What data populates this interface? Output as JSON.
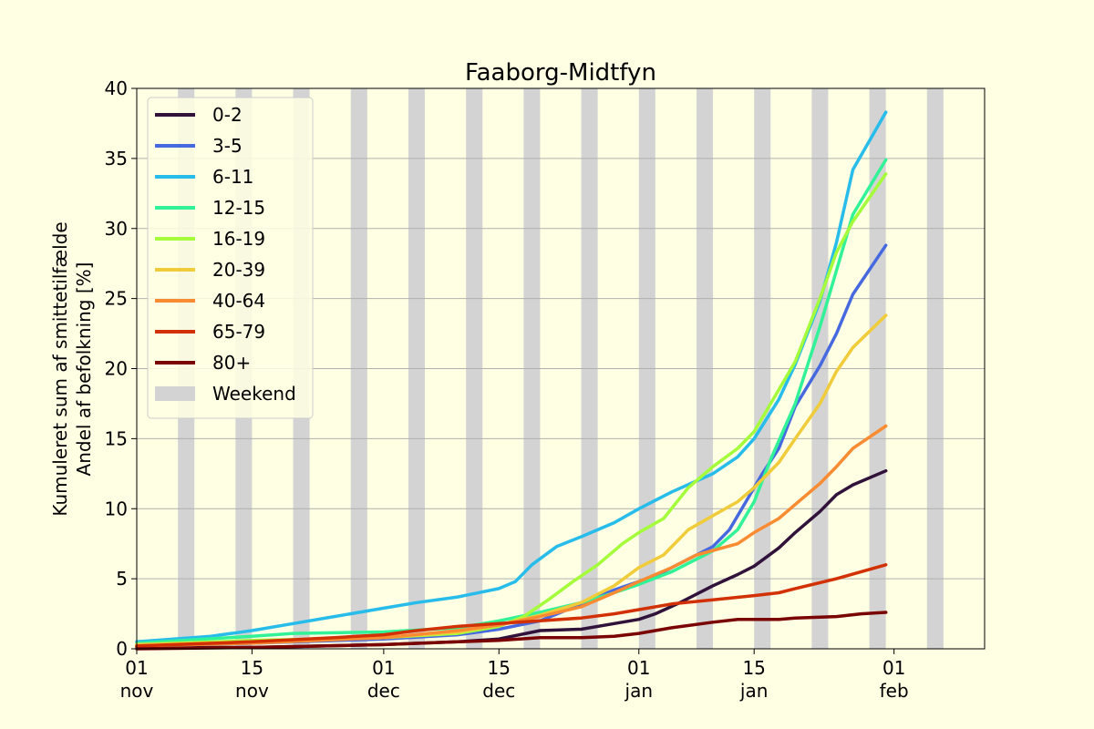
{
  "chart_data": {
    "type": "line",
    "title": "Faaborg-Midtfyn",
    "ylabel_line1": "Kumuleret sum af smittetilfælde",
    "ylabel_line2": "Andel af befolkning [%]",
    "xlabel": "",
    "ylim": [
      0,
      40
    ],
    "yticks": [
      0,
      5,
      10,
      15,
      20,
      25,
      30,
      35,
      40
    ],
    "x_start": "2021-11-01",
    "x_end": "2022-02-12",
    "xticks": [
      {
        "date": "2021-11-01",
        "day": "01",
        "month": "nov"
      },
      {
        "date": "2021-11-15",
        "day": "15",
        "month": "nov"
      },
      {
        "date": "2021-12-01",
        "day": "01",
        "month": "dec"
      },
      {
        "date": "2021-12-15",
        "day": "15",
        "month": "dec"
      },
      {
        "date": "2022-01-01",
        "day": "01",
        "month": "jan"
      },
      {
        "date": "2022-01-15",
        "day": "15",
        "month": "jan"
      },
      {
        "date": "2022-02-01",
        "day": "01",
        "month": "feb"
      }
    ],
    "grid": "horizontal",
    "legend_position": "top-left",
    "weekend_label": "Weekend",
    "weekend_color": "#d3d3d3",
    "weekends": [
      "2021-11-06",
      "2021-11-13",
      "2021-11-20",
      "2021-11-27",
      "2021-12-04",
      "2021-12-11",
      "2021-12-18",
      "2021-12-25",
      "2022-01-01",
      "2022-01-08",
      "2022-01-15",
      "2022-01-22",
      "2022-01-29",
      "2022-02-05"
    ],
    "series": [
      {
        "name": "0-2",
        "color": "#30123b",
        "points": [
          [
            "2021-11-01",
            0.1
          ],
          [
            "2021-11-15",
            0.1
          ],
          [
            "2021-12-01",
            0.3
          ],
          [
            "2021-12-10",
            0.5
          ],
          [
            "2021-12-15",
            0.7
          ],
          [
            "2021-12-20",
            1.3
          ],
          [
            "2021-12-25",
            1.4
          ],
          [
            "2021-12-29",
            1.8
          ],
          [
            "2022-01-01",
            2.1
          ],
          [
            "2022-01-03",
            2.5
          ],
          [
            "2022-01-06",
            3.3
          ],
          [
            "2022-01-10",
            4.5
          ],
          [
            "2022-01-13",
            5.3
          ],
          [
            "2022-01-15",
            5.9
          ],
          [
            "2022-01-18",
            7.2
          ],
          [
            "2022-01-20",
            8.3
          ],
          [
            "2022-01-23",
            9.8
          ],
          [
            "2022-01-25",
            11.0
          ],
          [
            "2022-01-27",
            11.7
          ],
          [
            "2022-01-31",
            12.7
          ]
        ]
      },
      {
        "name": "3-5",
        "color": "#4669e0",
        "points": [
          [
            "2021-11-01",
            0.2
          ],
          [
            "2021-11-15",
            0.4
          ],
          [
            "2021-12-01",
            0.7
          ],
          [
            "2021-12-10",
            1.0
          ],
          [
            "2021-12-15",
            1.4
          ],
          [
            "2021-12-20",
            2.0
          ],
          [
            "2021-12-25",
            3.2
          ],
          [
            "2021-12-29",
            4.2
          ],
          [
            "2022-01-01",
            4.8
          ],
          [
            "2022-01-04",
            5.5
          ],
          [
            "2022-01-08",
            6.7
          ],
          [
            "2022-01-10",
            7.3
          ],
          [
            "2022-01-12",
            8.5
          ],
          [
            "2022-01-14",
            10.5
          ],
          [
            "2022-01-16",
            12.5
          ],
          [
            "2022-01-18",
            14.3
          ],
          [
            "2022-01-20",
            17.3
          ],
          [
            "2022-01-23",
            20.2
          ],
          [
            "2022-01-25",
            22.5
          ],
          [
            "2022-01-27",
            25.3
          ],
          [
            "2022-01-31",
            28.8
          ]
        ]
      },
      {
        "name": "6-11",
        "color": "#28bceb",
        "points": [
          [
            "2021-11-01",
            0.5
          ],
          [
            "2021-11-10",
            0.9
          ],
          [
            "2021-11-15",
            1.3
          ],
          [
            "2021-11-20",
            1.8
          ],
          [
            "2021-11-25",
            2.3
          ],
          [
            "2021-12-01",
            2.9
          ],
          [
            "2021-12-05",
            3.3
          ],
          [
            "2021-12-10",
            3.7
          ],
          [
            "2021-12-15",
            4.3
          ],
          [
            "2021-12-17",
            4.8
          ],
          [
            "2021-12-19",
            6.0
          ],
          [
            "2021-12-22",
            7.3
          ],
          [
            "2021-12-25",
            8.0
          ],
          [
            "2021-12-29",
            9.0
          ],
          [
            "2022-01-01",
            10.0
          ],
          [
            "2022-01-05",
            11.2
          ],
          [
            "2022-01-10",
            12.5
          ],
          [
            "2022-01-13",
            13.7
          ],
          [
            "2022-01-15",
            15.0
          ],
          [
            "2022-01-18",
            17.8
          ],
          [
            "2022-01-20",
            20.3
          ],
          [
            "2022-01-23",
            24.8
          ],
          [
            "2022-01-25",
            29.0
          ],
          [
            "2022-01-27",
            34.2
          ],
          [
            "2022-01-31",
            38.3
          ]
        ]
      },
      {
        "name": "12-15",
        "color": "#32f298",
        "points": [
          [
            "2021-11-01",
            0.4
          ],
          [
            "2021-11-15",
            0.9
          ],
          [
            "2021-11-20",
            1.1
          ],
          [
            "2021-12-01",
            1.2
          ],
          [
            "2021-12-10",
            1.5
          ],
          [
            "2021-12-15",
            2.0
          ],
          [
            "2021-12-20",
            2.6
          ],
          [
            "2021-12-25",
            3.3
          ],
          [
            "2021-12-29",
            4.0
          ],
          [
            "2022-01-01",
            4.6
          ],
          [
            "2022-01-05",
            5.5
          ],
          [
            "2022-01-10",
            7.0
          ],
          [
            "2022-01-13",
            8.5
          ],
          [
            "2022-01-15",
            10.5
          ],
          [
            "2022-01-17",
            13.5
          ],
          [
            "2022-01-20",
            17.5
          ],
          [
            "2022-01-23",
            23.0
          ],
          [
            "2022-01-25",
            27.0
          ],
          [
            "2022-01-27",
            31.0
          ],
          [
            "2022-01-31",
            34.9
          ]
        ]
      },
      {
        "name": "16-19",
        "color": "#a4fc3b",
        "points": [
          [
            "2021-11-01",
            0.3
          ],
          [
            "2021-11-15",
            0.6
          ],
          [
            "2021-12-01",
            0.8
          ],
          [
            "2021-12-10",
            1.1
          ],
          [
            "2021-12-15",
            1.6
          ],
          [
            "2021-12-18",
            2.3
          ],
          [
            "2021-12-21",
            3.5
          ],
          [
            "2021-12-24",
            4.8
          ],
          [
            "2021-12-27",
            6.0
          ],
          [
            "2021-12-30",
            7.5
          ],
          [
            "2022-01-01",
            8.3
          ],
          [
            "2022-01-04",
            9.3
          ],
          [
            "2022-01-07",
            11.5
          ],
          [
            "2022-01-10",
            13.0
          ],
          [
            "2022-01-13",
            14.3
          ],
          [
            "2022-01-15",
            15.5
          ],
          [
            "2022-01-18",
            18.5
          ],
          [
            "2022-01-20",
            20.5
          ],
          [
            "2022-01-23",
            25.0
          ],
          [
            "2022-01-25",
            28.3
          ],
          [
            "2022-01-27",
            30.5
          ],
          [
            "2022-01-31",
            33.9
          ]
        ]
      },
      {
        "name": "20-39",
        "color": "#f0cb3a",
        "points": [
          [
            "2021-11-01",
            0.3
          ],
          [
            "2021-11-15",
            0.5
          ],
          [
            "2021-12-01",
            0.8
          ],
          [
            "2021-12-10",
            1.2
          ],
          [
            "2021-12-15",
            1.7
          ],
          [
            "2021-12-20",
            2.4
          ],
          [
            "2021-12-25",
            3.3
          ],
          [
            "2021-12-29",
            4.5
          ],
          [
            "2022-01-01",
            5.8
          ],
          [
            "2022-01-04",
            6.7
          ],
          [
            "2022-01-07",
            8.5
          ],
          [
            "2022-01-10",
            9.5
          ],
          [
            "2022-01-13",
            10.5
          ],
          [
            "2022-01-15",
            11.5
          ],
          [
            "2022-01-18",
            13.3
          ],
          [
            "2022-01-20",
            15.0
          ],
          [
            "2022-01-23",
            17.5
          ],
          [
            "2022-01-25",
            19.8
          ],
          [
            "2022-01-27",
            21.5
          ],
          [
            "2022-01-31",
            23.8
          ]
        ]
      },
      {
        "name": "40-64",
        "color": "#f98c32",
        "points": [
          [
            "2021-11-01",
            0.2
          ],
          [
            "2021-11-15",
            0.4
          ],
          [
            "2021-12-01",
            0.8
          ],
          [
            "2021-12-10",
            1.3
          ],
          [
            "2021-12-15",
            1.7
          ],
          [
            "2021-12-20",
            2.3
          ],
          [
            "2021-12-25",
            3.0
          ],
          [
            "2021-12-29",
            4.0
          ],
          [
            "2022-01-01",
            4.8
          ],
          [
            "2022-01-05",
            5.8
          ],
          [
            "2022-01-08",
            6.7
          ],
          [
            "2022-01-13",
            7.5
          ],
          [
            "2022-01-15",
            8.3
          ],
          [
            "2022-01-18",
            9.3
          ],
          [
            "2022-01-20",
            10.3
          ],
          [
            "2022-01-23",
            11.8
          ],
          [
            "2022-01-25",
            13.0
          ],
          [
            "2022-01-27",
            14.3
          ],
          [
            "2022-01-31",
            15.9
          ]
        ]
      },
      {
        "name": "65-79",
        "color": "#d23105",
        "points": [
          [
            "2021-11-01",
            0.2
          ],
          [
            "2021-11-15",
            0.5
          ],
          [
            "2021-11-25",
            0.8
          ],
          [
            "2021-12-01",
            1.0
          ],
          [
            "2021-12-05",
            1.3
          ],
          [
            "2021-12-10",
            1.6
          ],
          [
            "2021-12-15",
            1.8
          ],
          [
            "2021-12-20",
            2.0
          ],
          [
            "2021-12-25",
            2.2
          ],
          [
            "2021-12-29",
            2.5
          ],
          [
            "2022-01-01",
            2.8
          ],
          [
            "2022-01-05",
            3.2
          ],
          [
            "2022-01-10",
            3.5
          ],
          [
            "2022-01-15",
            3.8
          ],
          [
            "2022-01-18",
            4.0
          ],
          [
            "2022-01-20",
            4.3
          ],
          [
            "2022-01-25",
            5.0
          ],
          [
            "2022-01-28",
            5.5
          ],
          [
            "2022-01-31",
            6.0
          ]
        ]
      },
      {
        "name": "80+",
        "color": "#7a0403",
        "points": [
          [
            "2021-11-01",
            0.0
          ],
          [
            "2021-11-15",
            0.1
          ],
          [
            "2021-12-01",
            0.3
          ],
          [
            "2021-12-10",
            0.5
          ],
          [
            "2021-12-15",
            0.6
          ],
          [
            "2021-12-20",
            0.8
          ],
          [
            "2021-12-25",
            0.8
          ],
          [
            "2021-12-29",
            0.9
          ],
          [
            "2022-01-01",
            1.1
          ],
          [
            "2022-01-05",
            1.5
          ],
          [
            "2022-01-10",
            1.9
          ],
          [
            "2022-01-13",
            2.1
          ],
          [
            "2022-01-18",
            2.1
          ],
          [
            "2022-01-20",
            2.2
          ],
          [
            "2022-01-25",
            2.3
          ],
          [
            "2022-01-28",
            2.5
          ],
          [
            "2022-01-31",
            2.6
          ]
        ]
      }
    ]
  }
}
